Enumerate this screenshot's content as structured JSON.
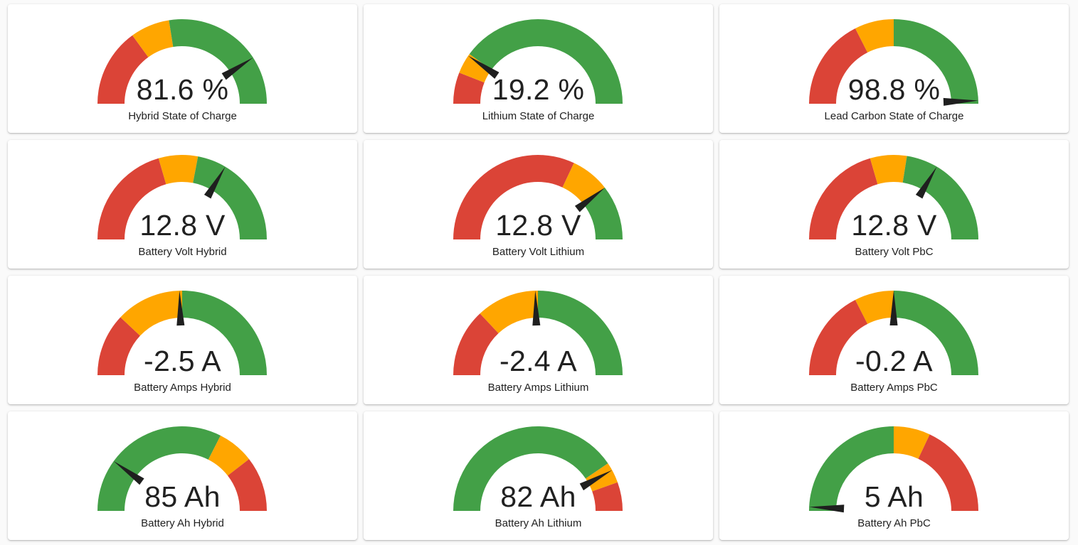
{
  "colors": {
    "green": "#43a047",
    "yellow": "#ffa600",
    "red": "#db4437",
    "needle": "#1f1f1f"
  },
  "gauges": [
    {
      "value_text": "81.6 %",
      "label": "Hybrid State of Charge",
      "min": 0,
      "max": 100,
      "value": 81.6,
      "segments": [
        {
          "from": 0,
          "to": 30,
          "color": "red"
        },
        {
          "from": 30,
          "to": 45,
          "color": "yellow"
        },
        {
          "from": 45,
          "to": 100,
          "color": "green"
        }
      ]
    },
    {
      "value_text": "19.2 %",
      "label": "Lithium State of Charge",
      "min": 0,
      "max": 100,
      "value": 19.2,
      "segments": [
        {
          "from": 0,
          "to": 12,
          "color": "red"
        },
        {
          "from": 12,
          "to": 20,
          "color": "yellow"
        },
        {
          "from": 20,
          "to": 100,
          "color": "green"
        }
      ]
    },
    {
      "value_text": "98.8 %",
      "label": "Lead Carbon State of Charge",
      "min": 0,
      "max": 100,
      "value": 98.8,
      "segments": [
        {
          "from": 0,
          "to": 35,
          "color": "red"
        },
        {
          "from": 35,
          "to": 50,
          "color": "yellow"
        },
        {
          "from": 50,
          "to": 100,
          "color": "green"
        }
      ]
    },
    {
      "value_text": "12.8 V",
      "label": "Battery Volt Hybrid",
      "min": 0,
      "max": 100,
      "value": 67,
      "segments": [
        {
          "from": 0,
          "to": 41,
          "color": "red"
        },
        {
          "from": 41,
          "to": 56,
          "color": "yellow"
        },
        {
          "from": 56,
          "to": 100,
          "color": "green"
        }
      ]
    },
    {
      "value_text": "12.8 V",
      "label": "Battery Volt Lithium",
      "min": 0,
      "max": 100,
      "value": 79,
      "segments": [
        {
          "from": 0,
          "to": 64,
          "color": "red"
        },
        {
          "from": 64,
          "to": 79,
          "color": "yellow"
        },
        {
          "from": 79,
          "to": 100,
          "color": "green"
        }
      ]
    },
    {
      "value_text": "12.8 V",
      "label": "Battery Volt PbC",
      "min": 0,
      "max": 100,
      "value": 67,
      "segments": [
        {
          "from": 0,
          "to": 41,
          "color": "red"
        },
        {
          "from": 41,
          "to": 55,
          "color": "yellow"
        },
        {
          "from": 55,
          "to": 100,
          "color": "green"
        }
      ]
    },
    {
      "value_text": "-2.5 A",
      "label": "Battery Amps Hybrid",
      "min": 0,
      "max": 100,
      "value": 49,
      "segments": [
        {
          "from": 0,
          "to": 24,
          "color": "red"
        },
        {
          "from": 24,
          "to": 50,
          "color": "yellow"
        },
        {
          "from": 50,
          "to": 100,
          "color": "green"
        }
      ]
    },
    {
      "value_text": "-2.4 A",
      "label": "Battery Amps Lithium",
      "min": 0,
      "max": 100,
      "value": 49,
      "segments": [
        {
          "from": 0,
          "to": 26,
          "color": "red"
        },
        {
          "from": 26,
          "to": 50,
          "color": "yellow"
        },
        {
          "from": 50,
          "to": 100,
          "color": "green"
        }
      ]
    },
    {
      "value_text": "-0.2 A",
      "label": "Battery Amps PbC",
      "min": 0,
      "max": 100,
      "value": 50,
      "segments": [
        {
          "from": 0,
          "to": 35,
          "color": "red"
        },
        {
          "from": 35,
          "to": 50,
          "color": "yellow"
        },
        {
          "from": 50,
          "to": 100,
          "color": "green"
        }
      ]
    },
    {
      "value_text": "85 Ah",
      "label": "Battery Ah Hybrid",
      "min": 0,
      "max": 100,
      "value": 20,
      "segments": [
        {
          "from": 0,
          "to": 65,
          "color": "green"
        },
        {
          "from": 65,
          "to": 79,
          "color": "yellow"
        },
        {
          "from": 79,
          "to": 100,
          "color": "red"
        }
      ]
    },
    {
      "value_text": "82 Ah",
      "label": "Battery Ah Lithium",
      "min": 0,
      "max": 100,
      "value": 84,
      "segments": [
        {
          "from": 0,
          "to": 81,
          "color": "green"
        },
        {
          "from": 81,
          "to": 89,
          "color": "yellow"
        },
        {
          "from": 89,
          "to": 100,
          "color": "red"
        }
      ]
    },
    {
      "value_text": "5 Ah",
      "label": "Battery Ah PbC",
      "min": 0,
      "max": 100,
      "value": 1.5,
      "segments": [
        {
          "from": 0,
          "to": 50,
          "color": "green"
        },
        {
          "from": 50,
          "to": 64,
          "color": "yellow"
        },
        {
          "from": 64,
          "to": 100,
          "color": "red"
        }
      ]
    }
  ]
}
